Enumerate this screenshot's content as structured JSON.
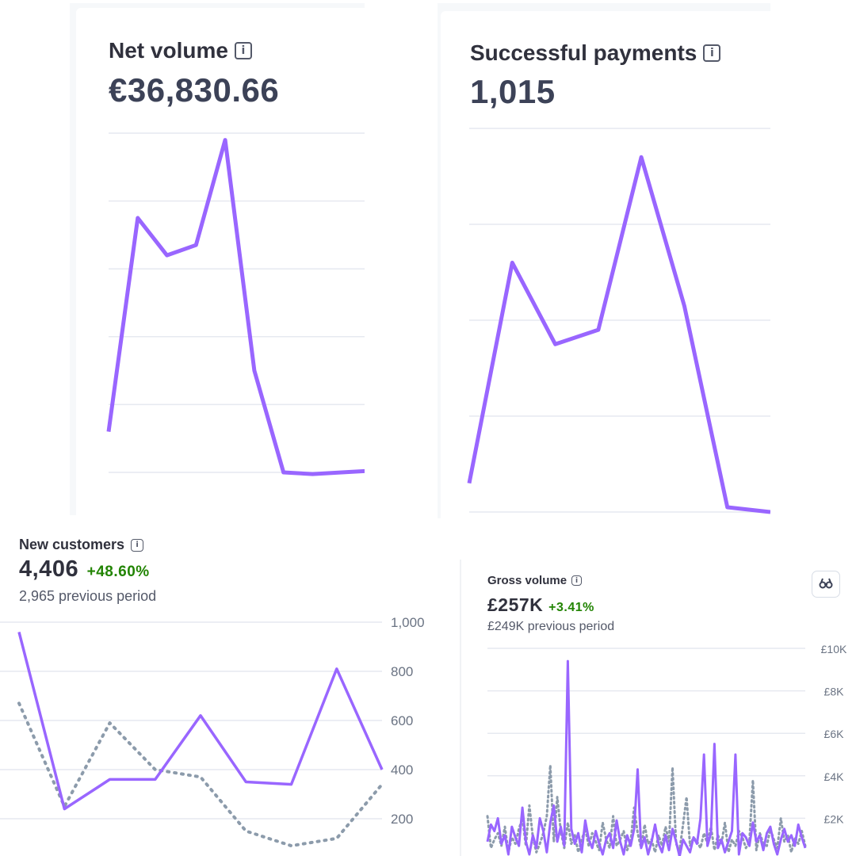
{
  "accent": "#9966ff",
  "comparison_color": "#8c9bab",
  "positive_color": "#228403",
  "net_volume": {
    "title": "Net volume",
    "value": "€36,830.66",
    "icon": "info-icon"
  },
  "successful_payments": {
    "title": "Successful payments",
    "value": "1,015",
    "icon": "info-icon"
  },
  "new_customers": {
    "title": "New customers",
    "value": "4,406",
    "change": "+48.60%",
    "previous": "2,965 previous period",
    "icon": "info-icon"
  },
  "gross_volume": {
    "title": "Gross volume",
    "value": "£257K",
    "change": "+3.41%",
    "previous": "£249K previous period",
    "icon": "info-icon",
    "expand_icon": "binoculars-icon"
  },
  "chart_data": [
    {
      "type": "line",
      "title": "Net volume",
      "grid": true,
      "series": [
        {
          "values": [
            1200,
            7500,
            6400,
            6700,
            9800,
            3000,
            0,
            -50,
            0,
            50
          ]
        }
      ],
      "ylim": [
        0,
        10000
      ]
    },
    {
      "type": "line",
      "title": "Successful payments",
      "grid": true,
      "series": [
        {
          "values": [
            30,
            260,
            175,
            190,
            370,
            215,
            5,
            0
          ]
        }
      ],
      "ylim": [
        0,
        400
      ]
    },
    {
      "type": "line",
      "title": "New customers",
      "grid": true,
      "y_ticks": [
        "1,000",
        "800",
        "600",
        "400",
        "200"
      ],
      "ylim": [
        0,
        1000
      ],
      "series": [
        {
          "values": [
            960,
            240,
            360,
            360,
            620,
            350,
            340,
            810,
            400
          ]
        },
        {
          "dashed": true,
          "values": [
            670,
            250,
            590,
            400,
            370,
            150,
            90,
            120,
            340
          ]
        }
      ]
    },
    {
      "type": "line",
      "title": "Gross volume",
      "grid": true,
      "y_ticks": [
        "£10K",
        "£8K",
        "£6K",
        "£4K",
        "£2K"
      ],
      "ylim": [
        0,
        10000
      ],
      "series": [
        {
          "values": [
            900,
            1700,
            1400,
            2000,
            800,
            1200,
            300,
            1600,
            1100,
            700,
            2500,
            900,
            300,
            1200,
            600,
            2000,
            1400,
            400,
            1800,
            2600,
            900,
            1600,
            700,
            9400,
            1500,
            800,
            1300,
            400,
            1900,
            1000,
            600,
            1400,
            800,
            300,
            1000,
            1300,
            600,
            1900,
            900,
            300,
            1200,
            700,
            1500,
            4300,
            600,
            1100,
            300,
            900,
            1700,
            800,
            400,
            1200,
            500,
            1500,
            900,
            200,
            1000,
            700,
            400,
            1100,
            800,
            2000,
            5000,
            700,
            1300,
            5500,
            600,
            1000,
            400,
            900,
            1400,
            5000,
            300,
            1300,
            1100,
            700,
            1800,
            900,
            1200,
            500,
            1300,
            1600,
            800,
            300,
            1000,
            1500,
            900,
            1200,
            700,
            1700,
            1100,
            600
          ]
        },
        {
          "dashed": true,
          "values": [
            2100,
            600,
            1000,
            1300,
            700,
            1600,
            400,
            1100,
            800,
            1500,
            2000,
            700,
            2600,
            1100,
            400,
            800,
            1300,
            2100,
            4500,
            900,
            3000,
            1400,
            600,
            1800,
            800,
            1200,
            400,
            1000,
            1500,
            700,
            1300,
            900,
            500,
            1800,
            1000,
            600,
            2100,
            700,
            1000,
            1400,
            500,
            900,
            2500,
            1300,
            600,
            1700,
            800,
            1000,
            400,
            1200,
            700,
            1600,
            900,
            4400,
            800,
            500,
            1700,
            3000,
            700,
            1100,
            900,
            600,
            1300,
            800,
            1600,
            500,
            1200,
            800,
            1800,
            400,
            1000,
            700,
            1400,
            1100,
            600,
            900,
            3800,
            500,
            1300,
            800,
            700,
            1500,
            1000,
            600,
            2000,
            900,
            1200,
            400,
            1100,
            800,
            1400,
            700
          ]
        }
      ]
    }
  ]
}
